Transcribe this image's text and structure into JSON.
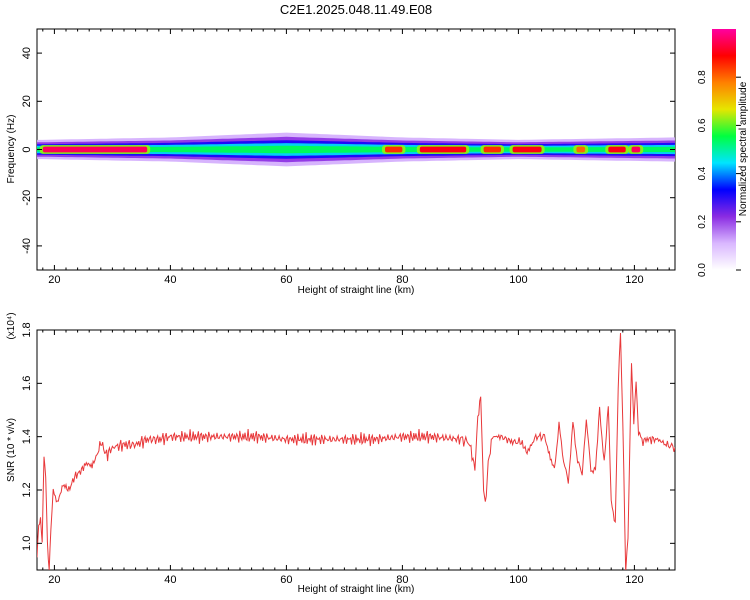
{
  "title": "C2E1.2025.048.11.49.E08",
  "colors": {
    "series": "#e8383a",
    "axis": "#000000",
    "background": "#ffffff"
  },
  "chart_data": [
    {
      "type": "heatmap",
      "xlabel": "Height of straight line (km)",
      "ylabel": "Frequency (Hz)",
      "xlim": [
        17,
        127
      ],
      "ylim": [
        -50,
        50
      ],
      "xticks": [
        20,
        40,
        60,
        80,
        100,
        120
      ],
      "yticks": [
        -40,
        -20,
        0,
        20,
        40
      ],
      "colorbar": {
        "label": "Normalized spectral amplitude",
        "range": [
          0,
          1
        ],
        "ticks": [
          0.0,
          0.2,
          0.4,
          0.6,
          0.8
        ],
        "colormap": [
          "#ffffff",
          "#d9b7ff",
          "#8a2be2",
          "#0000ff",
          "#00e5ff",
          "#00ff40",
          "#e6e600",
          "#ff8000",
          "#ff0000",
          "#ff00a0"
        ]
      },
      "ridge": {
        "frequency_hz": 0,
        "width_profile": [
          {
            "x": 18,
            "width_hz": 4
          },
          {
            "x": 40,
            "width_hz": 5
          },
          {
            "x": 60,
            "width_hz": 7
          },
          {
            "x": 80,
            "width_hz": 5
          },
          {
            "x": 100,
            "width_hz": 4
          },
          {
            "x": 127,
            "width_hz": 5
          }
        ],
        "hotspots": [
          {
            "x_from": 18,
            "x_to": 36,
            "amplitude": 0.95
          },
          {
            "x_from": 77,
            "x_to": 80,
            "amplitude": 0.85
          },
          {
            "x_from": 83,
            "x_to": 91,
            "amplitude": 0.9
          },
          {
            "x_from": 94,
            "x_to": 97,
            "amplitude": 0.85
          },
          {
            "x_from": 99,
            "x_to": 104,
            "amplitude": 0.9
          },
          {
            "x_from": 110,
            "x_to": 111.5,
            "amplitude": 0.8
          },
          {
            "x_from": 115.5,
            "x_to": 118.5,
            "amplitude": 0.9
          },
          {
            "x_from": 119.5,
            "x_to": 121,
            "amplitude": 0.95
          }
        ]
      }
    },
    {
      "type": "line",
      "xlabel": "Height of straight line (km)",
      "ylabel": "SNR (10 * v/v)",
      "yscale_label": "(x10⁴)",
      "xlim": [
        17,
        127
      ],
      "ylim": [
        0.9,
        1.8
      ],
      "xticks": [
        20,
        40,
        60,
        80,
        100,
        120
      ],
      "yticks": [
        1.0,
        1.2,
        1.4,
        1.6,
        1.8
      ],
      "series": [
        {
          "color": "#e8383a",
          "points": [
            [
              17.0,
              0.95
            ],
            [
              17.3,
              1.06
            ],
            [
              17.6,
              1.1
            ],
            [
              17.9,
              1.0
            ],
            [
              18.2,
              1.33
            ],
            [
              18.5,
              1.25
            ],
            [
              18.8,
              1.0
            ],
            [
              19.1,
              0.9
            ],
            [
              19.4,
              1.05
            ],
            [
              19.8,
              1.2
            ],
            [
              20.5,
              1.15
            ],
            [
              21.5,
              1.22
            ],
            [
              22.5,
              1.2
            ],
            [
              23.5,
              1.25
            ],
            [
              24.5,
              1.27
            ],
            [
              25.5,
              1.3
            ],
            [
              26.5,
              1.29
            ],
            [
              27.5,
              1.34
            ],
            [
              28.0,
              1.38
            ],
            [
              29,
              1.33
            ],
            [
              30,
              1.36
            ],
            [
              32,
              1.37
            ],
            [
              34,
              1.37
            ],
            [
              36,
              1.39
            ],
            [
              38,
              1.39
            ],
            [
              40,
              1.4
            ],
            [
              45,
              1.4
            ],
            [
              50,
              1.4
            ],
            [
              55,
              1.4
            ],
            [
              60,
              1.39
            ],
            [
              65,
              1.39
            ],
            [
              70,
              1.39
            ],
            [
              75,
              1.39
            ],
            [
              80,
              1.4
            ],
            [
              85,
              1.4
            ],
            [
              90,
              1.39
            ],
            [
              91.5,
              1.38
            ],
            [
              92.5,
              1.28
            ],
            [
              93.0,
              1.47
            ],
            [
              93.5,
              1.55
            ],
            [
              94.0,
              1.2
            ],
            [
              94.3,
              1.14
            ],
            [
              94.8,
              1.3
            ],
            [
              95.5,
              1.4
            ],
            [
              97,
              1.4
            ],
            [
              99,
              1.38
            ],
            [
              100.5,
              1.38
            ],
            [
              101.5,
              1.34
            ],
            [
              103,
              1.4
            ],
            [
              104.5,
              1.4
            ],
            [
              105.5,
              1.32
            ],
            [
              106.2,
              1.28
            ],
            [
              107,
              1.45
            ],
            [
              107.8,
              1.3
            ],
            [
              108.6,
              1.23
            ],
            [
              109.4,
              1.46
            ],
            [
              110.2,
              1.3
            ],
            [
              111,
              1.26
            ],
            [
              111.7,
              1.46
            ],
            [
              112.5,
              1.28
            ],
            [
              113.3,
              1.28
            ],
            [
              114,
              1.51
            ],
            [
              114.8,
              1.3
            ],
            [
              115.5,
              1.52
            ],
            [
              116.0,
              1.16
            ],
            [
              116.7,
              1.07
            ],
            [
              117.2,
              1.58
            ],
            [
              117.6,
              1.79
            ],
            [
              118.0,
              1.45
            ],
            [
              118.5,
              0.9
            ],
            [
              118.9,
              1.01
            ],
            [
              119.5,
              1.68
            ],
            [
              119.9,
              1.45
            ],
            [
              120.3,
              1.62
            ],
            [
              120.7,
              1.42
            ],
            [
              121.3,
              1.38
            ],
            [
              122,
              1.39
            ],
            [
              124,
              1.39
            ],
            [
              125.5,
              1.37
            ],
            [
              127,
              1.36
            ]
          ]
        }
      ]
    }
  ]
}
